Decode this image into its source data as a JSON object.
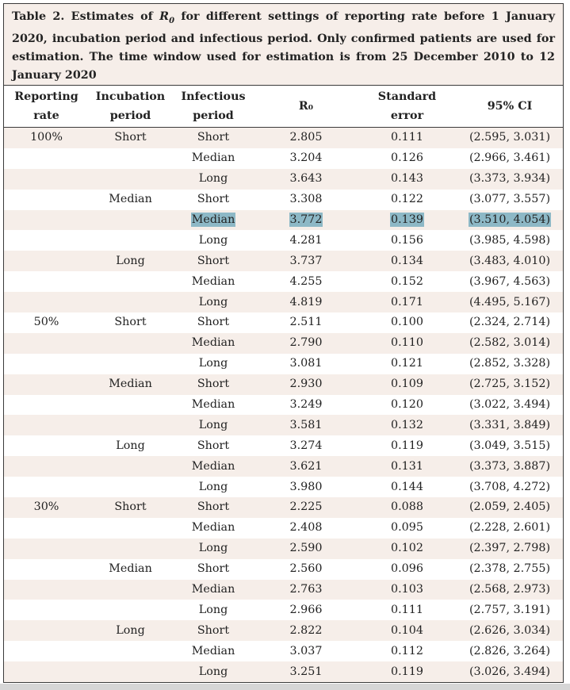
{
  "caption": {
    "before": "Table 2. Estimates of ",
    "symbol": "R",
    "subscript": "0",
    "after": " for different settings of reporting rate before 1 January 2020, incubation period and infectious period. Only confirmed patients are used for estimation. The time window used for estimation is from 25 December 2010 to 12 January 2020"
  },
  "headers": {
    "reporting_rate": [
      "Reporting",
      "rate"
    ],
    "incubation_period": [
      "Incubation",
      "period"
    ],
    "infectious_period": [
      "Infectious",
      "period"
    ],
    "r0": "R₀",
    "standard_error": [
      "Standard",
      "error"
    ],
    "ci": "95% CI"
  },
  "highlight_color": "#8db8c6",
  "row_shading_color": "#f6eee9",
  "rows": [
    {
      "reporting_rate": "100%",
      "incubation": "Short",
      "infectious": "Short",
      "r0": "2.805",
      "se": "0.111",
      "ci": "(2.595, 3.031)",
      "highlight": false
    },
    {
      "reporting_rate": "",
      "incubation": "",
      "infectious": "Median",
      "r0": "3.204",
      "se": "0.126",
      "ci": "(2.966, 3.461)",
      "highlight": false
    },
    {
      "reporting_rate": "",
      "incubation": "",
      "infectious": "Long",
      "r0": "3.643",
      "se": "0.143",
      "ci": "(3.373, 3.934)",
      "highlight": false
    },
    {
      "reporting_rate": "",
      "incubation": "Median",
      "infectious": "Short",
      "r0": "3.308",
      "se": "0.122",
      "ci": "(3.077, 3.557)",
      "highlight": false
    },
    {
      "reporting_rate": "",
      "incubation": "",
      "infectious": "Median",
      "r0": "3.772",
      "se": "0.139",
      "ci": "(3.510, 4.054)",
      "highlight": true
    },
    {
      "reporting_rate": "",
      "incubation": "",
      "infectious": "Long",
      "r0": "4.281",
      "se": "0.156",
      "ci": "(3.985, 4.598)",
      "highlight": false
    },
    {
      "reporting_rate": "",
      "incubation": "Long",
      "infectious": "Short",
      "r0": "3.737",
      "se": "0.134",
      "ci": "(3.483, 4.010)",
      "highlight": false
    },
    {
      "reporting_rate": "",
      "incubation": "",
      "infectious": "Median",
      "r0": "4.255",
      "se": "0.152",
      "ci": "(3.967, 4.563)",
      "highlight": false
    },
    {
      "reporting_rate": "",
      "incubation": "",
      "infectious": "Long",
      "r0": "4.819",
      "se": "0.171",
      "ci": "(4.495, 5.167)",
      "highlight": false
    },
    {
      "reporting_rate": "50%",
      "incubation": "Short",
      "infectious": "Short",
      "r0": "2.511",
      "se": "0.100",
      "ci": "(2.324, 2.714)",
      "highlight": false
    },
    {
      "reporting_rate": "",
      "incubation": "",
      "infectious": "Median",
      "r0": "2.790",
      "se": "0.110",
      "ci": "(2.582, 3.014)",
      "highlight": false
    },
    {
      "reporting_rate": "",
      "incubation": "",
      "infectious": "Long",
      "r0": "3.081",
      "se": "0.121",
      "ci": "(2.852, 3.328)",
      "highlight": false
    },
    {
      "reporting_rate": "",
      "incubation": "Median",
      "infectious": "Short",
      "r0": "2.930",
      "se": "0.109",
      "ci": "(2.725, 3.152)",
      "highlight": false
    },
    {
      "reporting_rate": "",
      "incubation": "",
      "infectious": "Median",
      "r0": "3.249",
      "se": "0.120",
      "ci": "(3.022, 3.494)",
      "highlight": false
    },
    {
      "reporting_rate": "",
      "incubation": "",
      "infectious": "Long",
      "r0": "3.581",
      "se": "0.132",
      "ci": "(3.331, 3.849)",
      "highlight": false
    },
    {
      "reporting_rate": "",
      "incubation": "Long",
      "infectious": "Short",
      "r0": "3.274",
      "se": "0.119",
      "ci": "(3.049, 3.515)",
      "highlight": false
    },
    {
      "reporting_rate": "",
      "incubation": "",
      "infectious": "Median",
      "r0": "3.621",
      "se": "0.131",
      "ci": "(3.373, 3.887)",
      "highlight": false
    },
    {
      "reporting_rate": "",
      "incubation": "",
      "infectious": "Long",
      "r0": "3.980",
      "se": "0.144",
      "ci": "(3.708, 4.272)",
      "highlight": false
    },
    {
      "reporting_rate": "30%",
      "incubation": "Short",
      "infectious": "Short",
      "r0": "2.225",
      "se": "0.088",
      "ci": "(2.059, 2.405)",
      "highlight": false
    },
    {
      "reporting_rate": "",
      "incubation": "",
      "infectious": "Median",
      "r0": "2.408",
      "se": "0.095",
      "ci": "(2.228, 2.601)",
      "highlight": false
    },
    {
      "reporting_rate": "",
      "incubation": "",
      "infectious": "Long",
      "r0": "2.590",
      "se": "0.102",
      "ci": "(2.397, 2.798)",
      "highlight": false
    },
    {
      "reporting_rate": "",
      "incubation": "Median",
      "infectious": "Short",
      "r0": "2.560",
      "se": "0.096",
      "ci": "(2.378, 2.755)",
      "highlight": false
    },
    {
      "reporting_rate": "",
      "incubation": "",
      "infectious": "Median",
      "r0": "2.763",
      "se": "0.103",
      "ci": "(2.568, 2.973)",
      "highlight": false
    },
    {
      "reporting_rate": "",
      "incubation": "",
      "infectious": "Long",
      "r0": "2.966",
      "se": "0.111",
      "ci": "(2.757, 3.191)",
      "highlight": false
    },
    {
      "reporting_rate": "",
      "incubation": "Long",
      "infectious": "Short",
      "r0": "2.822",
      "se": "0.104",
      "ci": "(2.626, 3.034)",
      "highlight": false
    },
    {
      "reporting_rate": "",
      "incubation": "",
      "infectious": "Median",
      "r0": "3.037",
      "se": "0.112",
      "ci": "(2.826, 3.264)",
      "highlight": false
    },
    {
      "reporting_rate": "",
      "incubation": "",
      "infectious": "Long",
      "r0": "3.251",
      "se": "0.119",
      "ci": "(3.026, 3.494)",
      "highlight": false
    }
  ]
}
